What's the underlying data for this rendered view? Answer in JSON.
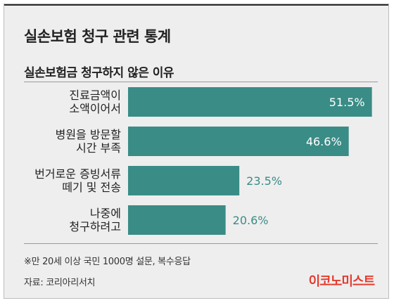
{
  "title": "실손보험 청구 관련 통계",
  "chart_data": {
    "type": "bar",
    "orientation": "horizontal",
    "title": "실손보험금 청구하지 않은 이유",
    "categories": [
      [
        "진료금액이",
        "소액이어서"
      ],
      [
        "병원을 방문할",
        "시간 부족"
      ],
      [
        "번거로운 증빙서류",
        "떼기 및 전송"
      ],
      [
        "나중에",
        "청구하려고"
      ]
    ],
    "values": [
      51.5,
      46.6,
      23.5,
      20.6
    ],
    "value_labels": [
      "51.5%",
      "46.6%",
      "23.5%",
      "20.6%"
    ],
    "xlim": [
      0,
      52
    ],
    "grid": false,
    "bar_color": "#3a8c86",
    "label_color_inside": "#ffffff",
    "label_color_outside": "#3a8c86"
  },
  "note": "※만 20세 이상 국민 1000명 설문, 복수응답",
  "source": "자료: 코리아리서치",
  "brand": "이코노미스트",
  "colors": {
    "background": "#eeeeee",
    "bar": "#3a8c86",
    "brand": "#e63b2e"
  }
}
